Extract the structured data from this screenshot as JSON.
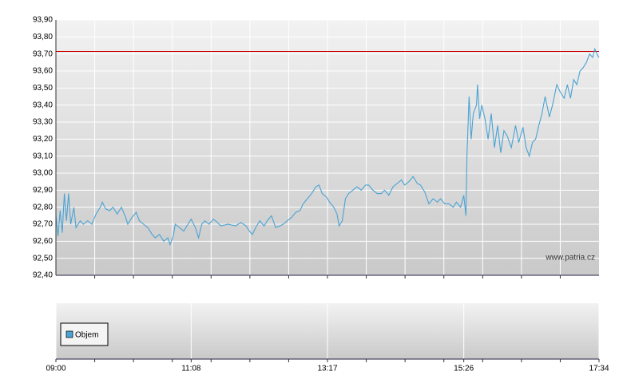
{
  "chart_data": {
    "type": "line",
    "color": "#4aa3d4",
    "x": [
      "09:00",
      "09:02",
      "09:04",
      "09:06",
      "09:08",
      "09:10",
      "09:12",
      "09:14",
      "09:17",
      "09:19",
      "09:23",
      "09:26",
      "09:30",
      "09:34",
      "09:38",
      "09:42",
      "09:44",
      "09:47",
      "09:51",
      "09:54",
      "09:58",
      "10:02",
      "10:06",
      "10:08",
      "10:12",
      "10:16",
      "10:19",
      "10:23",
      "10:27",
      "10:31",
      "10:34",
      "10:38",
      "10:42",
      "10:46",
      "10:48",
      "10:51",
      "10:53",
      "10:57",
      "11:01",
      "11:05",
      "11:08",
      "11:12",
      "11:15",
      "11:18",
      "11:21",
      "11:25",
      "11:29",
      "11:33",
      "11:36",
      "11:43",
      "11:50",
      "11:55",
      "12:00",
      "12:03",
      "12:06",
      "12:09",
      "12:13",
      "12:17",
      "12:20",
      "12:24",
      "12:28",
      "12:32",
      "12:35",
      "12:39",
      "12:43",
      "12:47",
      "12:51",
      "12:54",
      "12:58",
      "13:02",
      "13:06",
      "13:09",
      "13:12",
      "13:16",
      "13:19",
      "13:23",
      "13:26",
      "13:28",
      "13:31",
      "13:34",
      "13:37",
      "13:41",
      "13:45",
      "13:49",
      "13:53",
      "13:56",
      "14:00",
      "14:04",
      "14:08",
      "14:11",
      "14:15",
      "14:19",
      "14:23",
      "14:27",
      "14:30",
      "14:34",
      "14:38",
      "14:42",
      "14:45",
      "14:49",
      "14:53",
      "14:57",
      "15:01",
      "15:04",
      "15:08",
      "15:12",
      "15:16",
      "15:19",
      "15:23",
      "15:26",
      "15:28",
      "15:29",
      "15:31",
      "15:33",
      "15:35",
      "15:38",
      "15:39",
      "15:41",
      "15:43",
      "15:46",
      "15:49",
      "15:52",
      "15:55",
      "15:58",
      "16:01",
      "16:04",
      "16:07",
      "16:11",
      "16:15",
      "16:18",
      "16:22",
      "16:25",
      "16:28",
      "16:31",
      "16:34",
      "16:37",
      "16:40",
      "16:43",
      "16:47",
      "16:50",
      "16:54",
      "16:57",
      "17:01",
      "17:04",
      "17:07",
      "17:10",
      "17:13",
      "17:16",
      "17:19",
      "17:22",
      "17:25",
      "17:28",
      "17:30",
      "17:32",
      "17:34"
    ],
    "values": [
      92.75,
      92.63,
      92.78,
      92.65,
      92.88,
      92.72,
      92.88,
      92.7,
      92.8,
      92.68,
      92.72,
      92.7,
      92.72,
      92.7,
      92.76,
      92.8,
      92.83,
      92.79,
      92.78,
      92.8,
      92.76,
      92.8,
      92.74,
      92.7,
      92.74,
      92.77,
      92.72,
      92.7,
      92.68,
      92.64,
      92.62,
      92.64,
      92.6,
      92.62,
      92.58,
      92.63,
      92.7,
      92.68,
      92.66,
      92.7,
      92.73,
      92.68,
      92.62,
      92.7,
      92.72,
      92.7,
      92.73,
      92.71,
      92.69,
      92.7,
      92.69,
      92.71,
      92.69,
      92.66,
      92.64,
      92.68,
      92.72,
      92.69,
      92.72,
      92.75,
      92.68,
      92.69,
      92.7,
      92.72,
      92.74,
      92.77,
      92.78,
      92.82,
      92.85,
      92.88,
      92.92,
      92.93,
      92.88,
      92.86,
      92.83,
      92.8,
      92.76,
      92.69,
      92.72,
      92.85,
      92.88,
      92.9,
      92.92,
      92.9,
      92.93,
      92.93,
      92.9,
      92.88,
      92.88,
      92.9,
      92.87,
      92.92,
      92.94,
      92.96,
      92.93,
      92.95,
      92.98,
      92.94,
      92.93,
      92.89,
      92.82,
      92.85,
      92.83,
      92.85,
      92.82,
      92.82,
      92.8,
      92.83,
      92.8,
      92.87,
      92.75,
      93.1,
      93.45,
      93.2,
      93.35,
      93.4,
      93.52,
      93.32,
      93.4,
      93.32,
      93.2,
      93.35,
      93.15,
      93.28,
      93.12,
      93.25,
      93.22,
      93.15,
      93.28,
      93.18,
      93.27,
      93.15,
      93.1,
      93.18,
      93.2,
      93.28,
      93.35,
      93.45,
      93.33,
      93.4,
      93.52,
      93.48,
      93.44,
      93.52,
      93.44,
      93.55,
      93.52,
      93.6,
      93.62,
      93.65,
      93.7,
      93.68,
      93.73,
      93.7,
      93.68
    ],
    "xlim": [
      "09:00",
      "17:34"
    ],
    "xticks": [
      "09:00",
      "11:08",
      "13:17",
      "15:26",
      "17:34"
    ],
    "ylim": [
      92.4,
      93.9
    ],
    "yticks": [
      {
        "value": 92.4,
        "label": "92,40"
      },
      {
        "value": 92.5,
        "label": "92,50"
      },
      {
        "value": 92.6,
        "label": "92,60"
      },
      {
        "value": 92.7,
        "label": "92,70"
      },
      {
        "value": 92.8,
        "label": "92,80"
      },
      {
        "value": 92.9,
        "label": "92,90"
      },
      {
        "value": 93.0,
        "label": "93,00"
      },
      {
        "value": 93.1,
        "label": "93,10"
      },
      {
        "value": 93.2,
        "label": "93,20"
      },
      {
        "value": 93.3,
        "label": "93,30"
      },
      {
        "value": 93.4,
        "label": "93,40"
      },
      {
        "value": 93.5,
        "label": "93,50"
      },
      {
        "value": 93.6,
        "label": "93,60"
      },
      {
        "value": 93.7,
        "label": "93,70"
      },
      {
        "value": 93.8,
        "label": "93,80"
      },
      {
        "value": 93.9,
        "label": "93,90"
      }
    ],
    "grid": true,
    "reference_line": {
      "value": 93.715,
      "color": "#cc0000"
    },
    "watermark": "www.patria.cz",
    "volume_legend": {
      "label": "Objem",
      "color": "#4aa3d4"
    }
  }
}
